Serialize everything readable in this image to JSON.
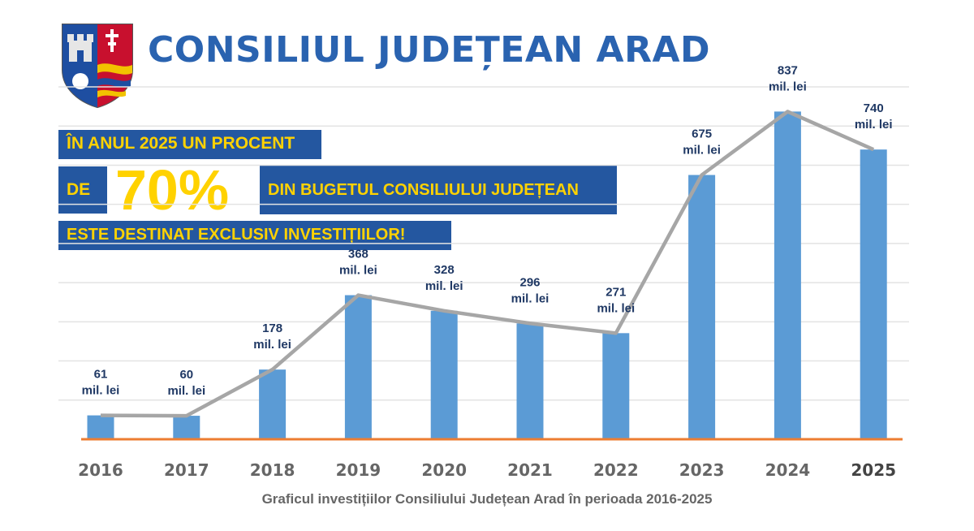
{
  "header": {
    "title": "CONSILIUL JUDEȚEAN ARAD"
  },
  "banner": {
    "line1": "ÎN ANUL 2025 UN PROCENT",
    "line2_prefix": "DE",
    "percent": "70%",
    "line2_suffix": "DIN BUGETUL CONSILIULUI JUDEȚEAN",
    "line3": "ESTE DESTINAT EXCLUSIV INVESTIȚIILOR!"
  },
  "colors": {
    "title": "#2a63b0",
    "banner_bg": "#2457a0",
    "banner_text": "#ffd200",
    "bar": "#5b9bd5",
    "line": "#a6a6a6",
    "axis": "#ed7d31",
    "label": "#1f3864"
  },
  "chart_data": {
    "type": "bar",
    "categories": [
      "2016",
      "2017",
      "2018",
      "2019",
      "2020",
      "2021",
      "2022",
      "2023",
      "2024",
      "2025"
    ],
    "values": [
      61,
      60,
      178,
      368,
      328,
      296,
      271,
      675,
      837,
      740
    ],
    "unit_label": "mil. lei",
    "overlay": "line",
    "ylim": [
      0,
      900
    ],
    "grid": true,
    "caption": "Graficul investițiilor Consiliului Județean Arad în perioada 2016-2025"
  }
}
